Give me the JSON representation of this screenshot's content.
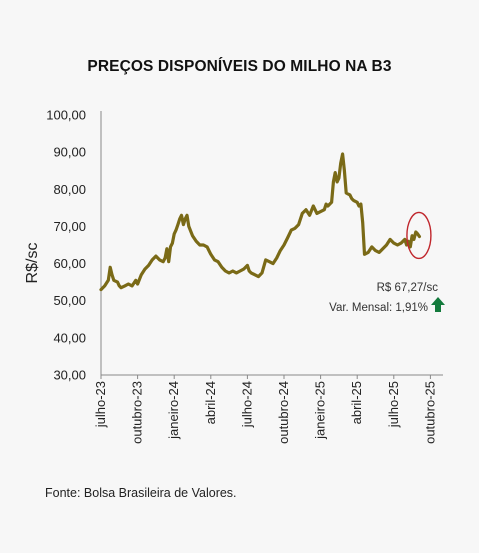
{
  "chart_data": {
    "type": "line",
    "title": "PREÇOS DISPONÍVEIS DO MILHO NA B3",
    "ylabel": "R$/sc",
    "xlabel": "",
    "ylim": [
      30,
      100
    ],
    "yticks": [
      "100,00",
      "90,00",
      "80,00",
      "70,00",
      "60,00",
      "50,00",
      "40,00",
      "30,00"
    ],
    "xticks": [
      "julho-23",
      "outubro-23",
      "janeiro-24",
      "abril-24",
      "julho-24",
      "outubro-24",
      "janeiro-25",
      "abril-25",
      "julho-25",
      "outubro-25"
    ],
    "grid": false,
    "series": [
      {
        "color": "#7a6a17",
        "points": [
          [
            0,
            53.0
          ],
          [
            0.1,
            54.0
          ],
          [
            0.2,
            55.5
          ],
          [
            0.25,
            59.0
          ],
          [
            0.3,
            57.0
          ],
          [
            0.35,
            55.5
          ],
          [
            0.45,
            55.0
          ],
          [
            0.5,
            54.0
          ],
          [
            0.55,
            53.5
          ],
          [
            0.65,
            54.0
          ],
          [
            0.75,
            54.5
          ],
          [
            0.85,
            54.0
          ],
          [
            0.95,
            55.5
          ],
          [
            1.0,
            54.5
          ],
          [
            1.1,
            57.0
          ],
          [
            1.2,
            58.5
          ],
          [
            1.3,
            59.5
          ],
          [
            1.4,
            61.0
          ],
          [
            1.5,
            62.0
          ],
          [
            1.6,
            61.0
          ],
          [
            1.7,
            60.5
          ],
          [
            1.75,
            61.5
          ],
          [
            1.8,
            64.0
          ],
          [
            1.85,
            60.5
          ],
          [
            1.9,
            64.5
          ],
          [
            1.95,
            65.5
          ],
          [
            2.0,
            68.0
          ],
          [
            2.05,
            69.0
          ],
          [
            2.1,
            70.5
          ],
          [
            2.15,
            72.0
          ],
          [
            2.2,
            73.0
          ],
          [
            2.25,
            70.5
          ],
          [
            2.3,
            72.0
          ],
          [
            2.35,
            73.0
          ],
          [
            2.4,
            70.0
          ],
          [
            2.5,
            67.5
          ],
          [
            2.6,
            66.0
          ],
          [
            2.7,
            65.0
          ],
          [
            2.8,
            65.0
          ],
          [
            2.9,
            64.5
          ],
          [
            3.0,
            62.5
          ],
          [
            3.1,
            61.0
          ],
          [
            3.2,
            60.5
          ],
          [
            3.3,
            59.0
          ],
          [
            3.4,
            58.0
          ],
          [
            3.5,
            57.5
          ],
          [
            3.6,
            58.0
          ],
          [
            3.7,
            57.5
          ],
          [
            3.8,
            58.0
          ],
          [
            3.9,
            58.5
          ],
          [
            4.0,
            59.5
          ],
          [
            4.05,
            58.0
          ],
          [
            4.1,
            57.5
          ],
          [
            4.2,
            57.0
          ],
          [
            4.3,
            56.5
          ],
          [
            4.4,
            57.5
          ],
          [
            4.5,
            61.0
          ],
          [
            4.6,
            60.5
          ],
          [
            4.7,
            60.0
          ],
          [
            4.8,
            61.5
          ],
          [
            4.9,
            63.5
          ],
          [
            5.0,
            65.0
          ],
          [
            5.1,
            67.0
          ],
          [
            5.2,
            69.0
          ],
          [
            5.3,
            69.5
          ],
          [
            5.4,
            70.5
          ],
          [
            5.5,
            73.5
          ],
          [
            5.6,
            74.5
          ],
          [
            5.7,
            73.0
          ],
          [
            5.8,
            75.5
          ],
          [
            5.9,
            73.5
          ],
          [
            6.0,
            74.0
          ],
          [
            6.1,
            74.5
          ],
          [
            6.15,
            76.0
          ],
          [
            6.2,
            75.5
          ],
          [
            6.3,
            76.5
          ],
          [
            6.35,
            82.0
          ],
          [
            6.4,
            84.5
          ],
          [
            6.45,
            82.0
          ],
          [
            6.5,
            83.0
          ],
          [
            6.55,
            87.0
          ],
          [
            6.6,
            89.5
          ],
          [
            6.65,
            85.0
          ],
          [
            6.7,
            79.0
          ],
          [
            6.8,
            78.5
          ],
          [
            6.85,
            77.5
          ],
          [
            6.9,
            77.0
          ],
          [
            7.0,
            76.5
          ],
          [
            7.05,
            75.5
          ],
          [
            7.1,
            76.0
          ],
          [
            7.15,
            71.0
          ],
          [
            7.2,
            62.5
          ],
          [
            7.3,
            63.0
          ],
          [
            7.4,
            64.5
          ],
          [
            7.5,
            63.5
          ],
          [
            7.6,
            63.0
          ],
          [
            7.7,
            64.0
          ],
          [
            7.8,
            65.0
          ],
          [
            7.9,
            66.5
          ],
          [
            8.0,
            65.5
          ],
          [
            8.1,
            65.0
          ],
          [
            8.2,
            65.5
          ],
          [
            8.3,
            66.5
          ],
          [
            8.35,
            65.0
          ],
          [
            8.4,
            66.0
          ],
          [
            8.45,
            64.5
          ],
          [
            8.5,
            67.5
          ],
          [
            8.55,
            66.5
          ],
          [
            8.6,
            68.5
          ],
          [
            8.65,
            68.0
          ],
          [
            8.7,
            67.3
          ]
        ]
      }
    ],
    "annotation_price": "R$ 67,27/sc",
    "annotation_var": "Var. Mensal: 1,91%",
    "up_arrow_color": "#137a3c",
    "highlight_color": "#c0272d"
  },
  "source": "Fonte: Bolsa Brasileira de Valores."
}
